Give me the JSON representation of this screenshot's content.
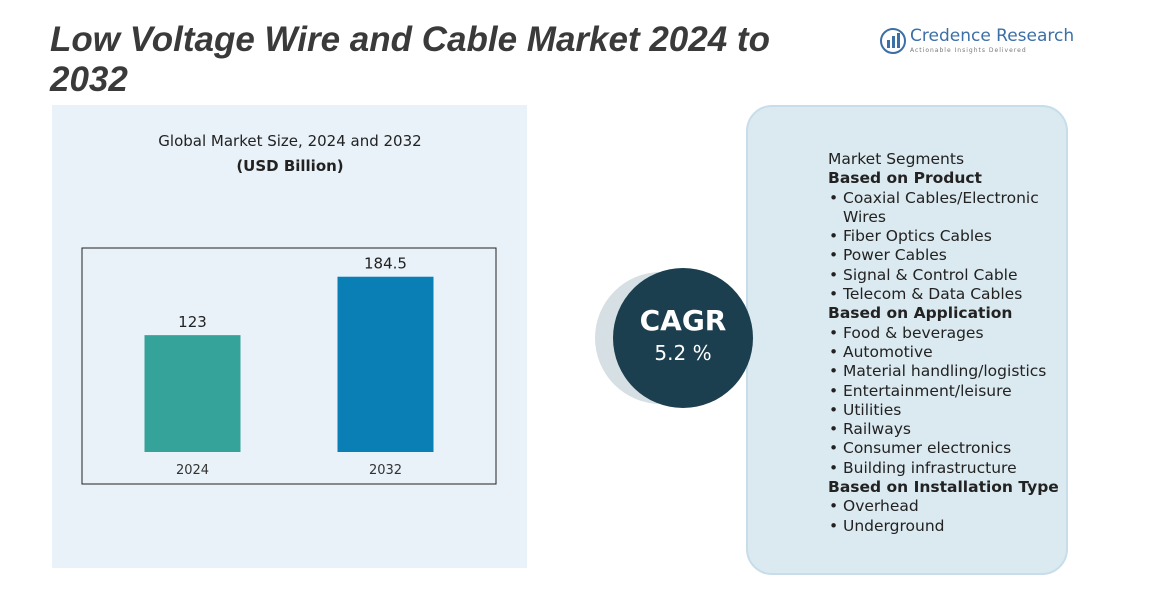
{
  "title": "Low Voltage Wire and Cable Market 2024 to 2032",
  "logo": {
    "name": "Credence Research",
    "tagline": "Actionable Insights Delivered"
  },
  "chart_data": {
    "type": "bar",
    "title": "Global Market Size, 2024 and 2032",
    "subtitle": "(USD Billion)",
    "categories": [
      "2024",
      "2032"
    ],
    "values": [
      123,
      184.5
    ],
    "colors": [
      "#35a39a",
      "#0a7fb5"
    ],
    "ylim": [
      0,
      200
    ]
  },
  "cagr": {
    "label": "CAGR",
    "value": "5.2 %"
  },
  "segments": {
    "heading": "Market Segments",
    "groups": [
      {
        "title": "Based on Product",
        "items": [
          "Coaxial Cables/Electronic Wires",
          "Fiber Optics Cables",
          "Power Cables",
          "Signal & Control Cable",
          "Telecom & Data Cables"
        ]
      },
      {
        "title": "Based on Application",
        "items": [
          "Food & beverages",
          "Automotive",
          "Material handling/logistics",
          "Entertainment/leisure",
          "Utilities",
          "Railways",
          "Consumer electronics",
          "Building infrastructure"
        ]
      },
      {
        "title": "Based on Installation Type",
        "items": [
          "Overhead",
          "Underground"
        ]
      }
    ]
  }
}
